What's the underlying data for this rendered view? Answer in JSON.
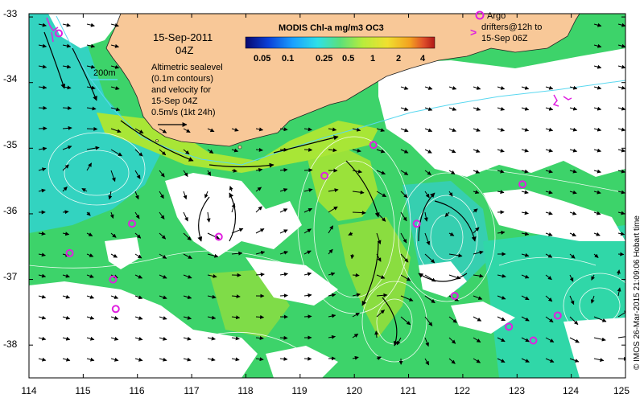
{
  "map": {
    "date_line": "15-Sep-2011",
    "time_line": "04Z",
    "colorbar": {
      "title": "MODIS Chl-a mg/m3 OC3",
      "ticks": [
        "0.05",
        "0.1",
        "0.25",
        "0.5",
        "1",
        "2",
        "4"
      ],
      "colors": [
        "#08086e",
        "#0a3fd8",
        "#1aa0ff",
        "#2ee0e8",
        "#5be07a",
        "#b8ec3c",
        "#f0e030",
        "#f3a020",
        "#e0502a",
        "#b01818"
      ]
    },
    "contour_label": "200m",
    "sealevel_note": [
      "Altimetric sealevel",
      "(0.1m contours)",
      "and velocity for",
      "15-Sep 04Z"
    ],
    "velocity_scale": [
      "0.5m/s (1kt 24h)"
    ],
    "argo_legend": [
      "Argo",
      "drifters@12h to",
      "15-Sep 06Z"
    ],
    "credit": "© IMOS 26-Mar-2015 21:09:06 Hobart time",
    "lat_ticks": [
      "-33",
      "-34",
      "-35",
      "-36",
      "-37",
      "-38"
    ],
    "lon_ticks": [
      "114",
      "115",
      "116",
      "117",
      "118",
      "119",
      "120",
      "121",
      "122",
      "123",
      "124",
      "125"
    ],
    "colors": {
      "land": "#f8c898",
      "ocean_green": "#3dd36a",
      "ocean_lime": "#9ae23a",
      "ocean_cyan": "#33d3c0",
      "cloud": "#ffffff",
      "argo": "#e020e0",
      "contour": "#ffffff",
      "shelf_line": "#5ad8f0"
    },
    "argo_floats": [
      {
        "lon": 114.55,
        "lat": -33.25
      },
      {
        "lon": 114.75,
        "lat": -36.6
      },
      {
        "lon": 115.55,
        "lat": -37.0
      },
      {
        "lon": 115.6,
        "lat": -37.45
      },
      {
        "lon": 115.9,
        "lat": -36.15
      },
      {
        "lon": 117.5,
        "lat": -36.35
      },
      {
        "lon": 119.45,
        "lat": -35.42
      },
      {
        "lon": 120.35,
        "lat": -34.95
      },
      {
        "lon": 121.15,
        "lat": -36.15
      },
      {
        "lon": 121.85,
        "lat": -37.25
      },
      {
        "lon": 122.85,
        "lat": -37.72
      },
      {
        "lon": 123.1,
        "lat": -35.55
      },
      {
        "lon": 123.3,
        "lat": -37.93
      },
      {
        "lon": 123.75,
        "lat": -37.55
      }
    ]
  }
}
